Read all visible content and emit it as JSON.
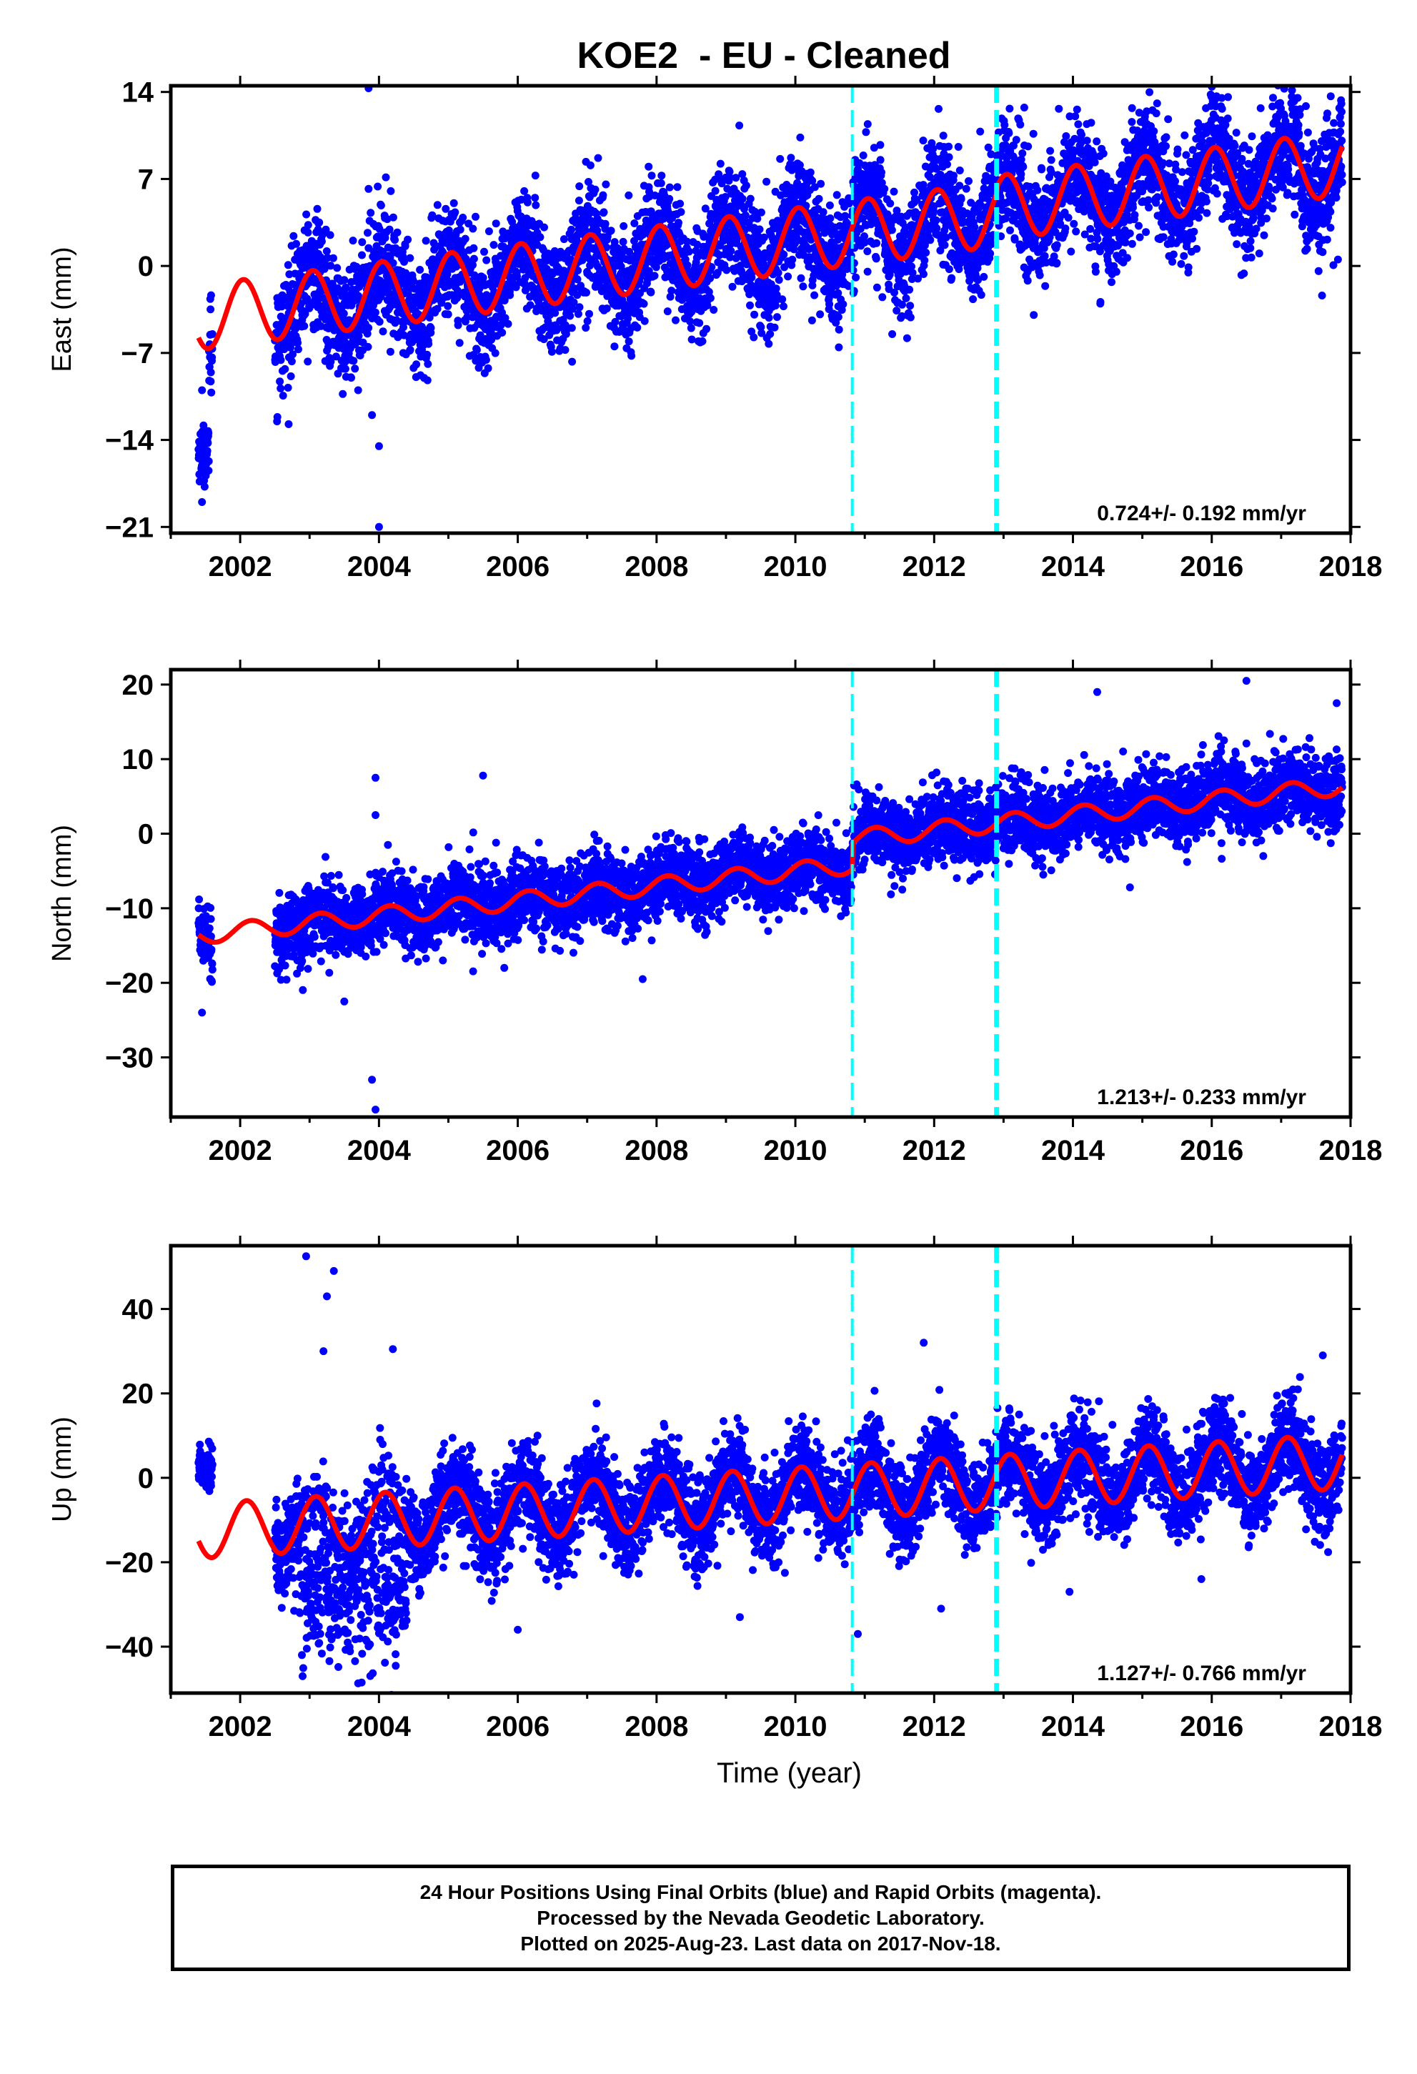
{
  "figure": {
    "title": "KOE2  - EU - Cleaned",
    "footer": [
      "24 Hour Positions Using Final Orbits (blue) and Rapid Orbits (magenta).",
      "Processed by the Nevada Geodetic Laboratory.",
      "Plotted on 2025-Aug-23. Last data on 2017-Nov-18."
    ],
    "colors": {
      "data_points": "#0000ff",
      "model_curve": "#ff0000",
      "event_lines": "#00ffff",
      "axes": "#000000"
    }
  },
  "chart_data": [
    {
      "type": "scatter",
      "component": "east",
      "ylabel": "East (mm)",
      "xlabel": "",
      "xlim": [
        2001.0,
        2018.0
      ],
      "ylim": [
        -21.5,
        14.5
      ],
      "xticks": [
        2002,
        2004,
        2006,
        2008,
        2010,
        2012,
        2014,
        2016,
        2018
      ],
      "yticks": [
        -21,
        -14,
        -7,
        0,
        7,
        14
      ],
      "ytick_labels": [
        "−21",
        "−14",
        "−7",
        "0",
        "7",
        "14"
      ],
      "rate_label": "0.724+/- 0.192 mm/yr",
      "rate": 0.724,
      "rate_sigma": 0.192,
      "event_lines": [
        {
          "x": 2010.82,
          "style": "dashed-thin"
        },
        {
          "x": 2012.9,
          "style": "dashed-thick"
        }
      ],
      "data_start": 2001.4,
      "data_end": 2017.88,
      "gap": [
        2001.6,
        2002.5
      ],
      "data_scatter_mm": 2.3,
      "model": {
        "offset_mm": -3.0,
        "rate_mm_per_yr": 0.724,
        "ref_year": 2003,
        "annual_amplitude_mm": 2.6,
        "annual_phase_rad": 1.3,
        "jump_at": 2012.9,
        "jump_mm": 0.5
      },
      "outliers": [
        {
          "x": 2003.85,
          "y": 14.3
        },
        {
          "x": 2003.85,
          "y": 6.2
        },
        {
          "x": 2004.0,
          "y": -21.0
        },
        {
          "x": 2004.0,
          "y": -14.5
        },
        {
          "x": 2003.7,
          "y": -10.0
        },
        {
          "x": 2003.9,
          "y": -12.0
        },
        {
          "x": 2004.7,
          "y": -9.2
        },
        {
          "x": 2001.45,
          "y": -19.0
        },
        {
          "x": 2001.45,
          "y": -10.0
        },
        {
          "x": 2003.6,
          "y": -9.0
        },
        {
          "x": 2004.35,
          "y": -7.0
        },
        {
          "x": 2013.3,
          "y": 9.7
        }
      ],
      "early_cluster": {
        "x_from": 2001.4,
        "x_to": 2001.55,
        "y_center": -15.0,
        "y_spread": 2.2
      }
    },
    {
      "type": "scatter",
      "component": "north",
      "ylabel": "North (mm)",
      "xlabel": "",
      "xlim": [
        2001.0,
        2018.0
      ],
      "ylim": [
        -38.0,
        22.0
      ],
      "xticks": [
        2002,
        2004,
        2006,
        2008,
        2010,
        2012,
        2014,
        2016,
        2018
      ],
      "yticks": [
        -30,
        -20,
        -10,
        0,
        10,
        20
      ],
      "ytick_labels": [
        "−30",
        "−20",
        "−10",
        "0",
        "10",
        "20"
      ],
      "rate_label": "1.213+/- 0.233 mm/yr",
      "rate": 1.213,
      "rate_sigma": 0.233,
      "event_lines": [
        {
          "x": 2010.82,
          "style": "dashed-thin"
        },
        {
          "x": 2012.9,
          "style": "dashed-thick"
        }
      ],
      "data_start": 2001.4,
      "data_end": 2017.88,
      "gap": [
        2001.6,
        2002.5
      ],
      "data_scatter_mm": 2.5,
      "model": {
        "offset_mm": -12.0,
        "rate_mm_per_yr": 1.0,
        "ref_year": 2003,
        "annual_amplitude_mm": 1.2,
        "annual_phase_rad": 0.6,
        "jump_at": 2010.82,
        "jump_mm": 3.5
      },
      "outliers": [
        {
          "x": 2003.95,
          "y": 7.5
        },
        {
          "x": 2003.95,
          "y": 2.5
        },
        {
          "x": 2003.9,
          "y": -33.0
        },
        {
          "x": 2003.95,
          "y": -37.0
        },
        {
          "x": 2005.5,
          "y": 7.8
        },
        {
          "x": 2001.45,
          "y": -24.0
        },
        {
          "x": 2007.8,
          "y": -19.5
        },
        {
          "x": 2003.5,
          "y": -22.5
        },
        {
          "x": 2016.5,
          "y": 20.5
        },
        {
          "x": 2014.35,
          "y": 19.0
        },
        {
          "x": 2017.8,
          "y": 17.5
        }
      ],
      "early_cluster": {
        "x_from": 2001.4,
        "x_to": 2001.55,
        "y_center": -13.5,
        "y_spread": 4.0
      }
    },
    {
      "type": "scatter",
      "component": "up",
      "ylabel": "Up (mm)",
      "xlabel": "Time (year)",
      "xlim": [
        2001.0,
        2018.0
      ],
      "ylim": [
        -51.0,
        55.0
      ],
      "xticks": [
        2002,
        2004,
        2006,
        2008,
        2010,
        2012,
        2014,
        2016,
        2018
      ],
      "yticks": [
        -40,
        -20,
        0,
        20,
        40
      ],
      "ytick_labels": [
        "−40",
        "−20",
        "0",
        "20",
        "40"
      ],
      "rate_label": "1.127+/- 0.766 mm/yr",
      "rate": 1.127,
      "rate_sigma": 0.766,
      "event_lines": [
        {
          "x": 2010.82,
          "style": "dashed-thin"
        },
        {
          "x": 2012.9,
          "style": "dashed-thick"
        }
      ],
      "data_start": 2001.4,
      "data_end": 2017.88,
      "gap": [
        2001.6,
        2002.5
      ],
      "data_scatter_mm": 5.5,
      "model": {
        "offset_mm": -11.0,
        "rate_mm_per_yr": 1.0,
        "ref_year": 2003,
        "annual_amplitude_mm": 6.5,
        "annual_phase_rad": 1.0,
        "jump_at": 2010.82,
        "jump_mm": 0.0
      },
      "outliers": [
        {
          "x": 2002.95,
          "y": 52.5
        },
        {
          "x": 2003.35,
          "y": 49.0
        },
        {
          "x": 2003.25,
          "y": 43.0
        },
        {
          "x": 2003.2,
          "y": 30.0
        },
        {
          "x": 2002.9,
          "y": -47.0
        },
        {
          "x": 2003.75,
          "y": -48.5
        },
        {
          "x": 2004.2,
          "y": 30.5
        },
        {
          "x": 2011.85,
          "y": 32.0
        },
        {
          "x": 2017.6,
          "y": 29.0
        },
        {
          "x": 2009.2,
          "y": -33.0
        },
        {
          "x": 2012.1,
          "y": -31.0
        },
        {
          "x": 2010.9,
          "y": -37.0
        },
        {
          "x": 2006.0,
          "y": -36.0
        },
        {
          "x": 2015.85,
          "y": -24.0
        },
        {
          "x": 2013.95,
          "y": -27.0
        }
      ],
      "early_cluster": {
        "x_from": 2001.4,
        "x_to": 2001.6,
        "y_center": 3.0,
        "y_spread": 5.0
      },
      "disturbed_interval": {
        "x_from": 2002.85,
        "x_to": 2004.4,
        "y_center": -28.0,
        "y_spread": 8.0
      }
    }
  ]
}
